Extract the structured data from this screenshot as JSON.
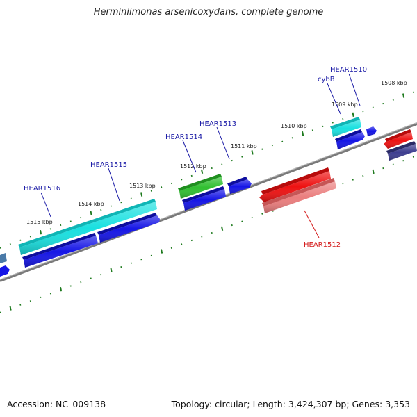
{
  "title": "Herminiimonas arsenicoxydans, complete genome",
  "footer": {
    "accession": "Accession: NC_009138",
    "topology": "Topology: circular; Length: 3,424,307 bp; Genes: 3,353"
  },
  "scale_labels": [
    "1508 kbp",
    "1509 kbp",
    "1510 kbp",
    "1511 kbp",
    "1512 kbp",
    "1513 kbp",
    "1514 kbp",
    "1515 kbp"
  ],
  "gene_labels": [
    "HEAR1510",
    "cybB",
    "HEAR1513",
    "HEAR1514",
    "HEAR1515",
    "HEAR1516",
    "HEAR1512"
  ],
  "colors": {
    "label_blue": "#1a1aa6",
    "label_red": "#d41a1a",
    "tick_green": "#1e7a1e",
    "backbone": "#7a7a7a",
    "cds_blue": "#1515e6",
    "cyan": "#19e0e0",
    "green": "#2fbf2f",
    "red": "#ee1111",
    "pink": "#ea7d7d",
    "slate": "#3d3d8f",
    "steel": "#4a7aa8"
  }
}
